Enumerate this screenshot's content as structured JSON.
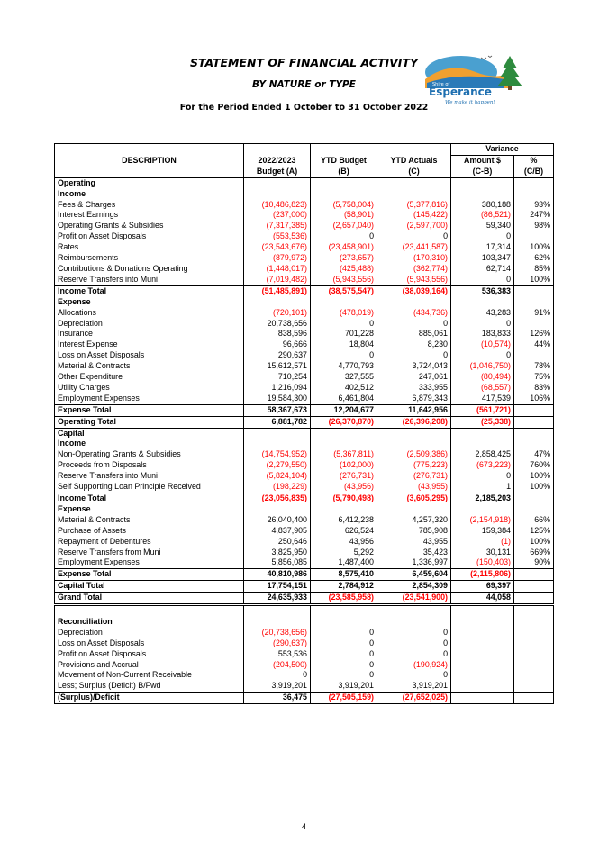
{
  "header": {
    "title": "STATEMENT OF FINANCIAL ACTIVITY",
    "subtitle": "BY NATURE or TYPE",
    "period": "For the Period Ended 1 October to 31 October 2022"
  },
  "logo": {
    "name": "Esperance",
    "shire_text": "Shire of",
    "tagline": "We make it happen!"
  },
  "table": {
    "variance_label": "Variance",
    "columns": {
      "description": "DESCRIPTION",
      "budget": "2022/2023",
      "budget_sub": "Budget (A)",
      "ytd_budget": "YTD Budget",
      "ytd_budget_sub": "(B)",
      "ytd_actuals": "YTD Actuals",
      "ytd_actuals_sub": "(C)",
      "amount": "Amount $",
      "amount_sub": "(C-B)",
      "pct": "%",
      "pct_sub": "(C/B)"
    },
    "rows": [
      {
        "label": "Operating",
        "bold": true,
        "indent": 1,
        "cells": [
          "",
          "",
          "",
          "",
          ""
        ]
      },
      {
        "label": "Income",
        "bold": true,
        "indent": 1,
        "cells": [
          "",
          "",
          "",
          "",
          ""
        ]
      },
      {
        "label": "Fees & Charges",
        "indent": 2,
        "cells": [
          "(10,486,823)",
          "(5,758,004)",
          "(5,377,816)",
          "380,188",
          "93%"
        ]
      },
      {
        "label": "Interest Earnings",
        "indent": 2,
        "cells": [
          "(237,000)",
          "(58,901)",
          "(145,422)",
          "(86,521)",
          "247%"
        ]
      },
      {
        "label": "Operating Grants & Subsidies",
        "indent": 2,
        "cells": [
          "(7,317,385)",
          "(2,657,040)",
          "(2,597,700)",
          "59,340",
          "98%"
        ]
      },
      {
        "label": "Profit on Asset Disposals",
        "indent": 2,
        "cells": [
          "(553,536)",
          "0",
          "0",
          "0",
          ""
        ]
      },
      {
        "label": "Rates",
        "indent": 2,
        "cells": [
          "(23,543,676)",
          "(23,458,901)",
          "(23,441,587)",
          "17,314",
          "100%"
        ]
      },
      {
        "label": "Reimbursements",
        "indent": 2,
        "cells": [
          "(879,972)",
          "(273,657)",
          "(170,310)",
          "103,347",
          "62%"
        ]
      },
      {
        "label": "Contributions & Donations Operating",
        "indent": 2,
        "cells": [
          "(1,448,017)",
          "(425,488)",
          "(362,774)",
          "62,714",
          "85%"
        ]
      },
      {
        "label": "Reserve Transfers into Muni",
        "indent": 2,
        "cells": [
          "(7,019,482)",
          "(5,943,556)",
          "(5,943,556)",
          "0",
          "100%"
        ]
      },
      {
        "label": "Income  Total",
        "bold": true,
        "indent": 1,
        "border": "top",
        "cells": [
          "(51,485,891)",
          "(38,575,547)",
          "(38,039,164)",
          "536,383",
          ""
        ]
      },
      {
        "label": "Expense",
        "bold": true,
        "indent": 1,
        "cells": [
          "",
          "",
          "",
          "",
          ""
        ]
      },
      {
        "label": "Allocations",
        "indent": 2,
        "cells": [
          "(720,101)",
          "(478,019)",
          "(434,736)",
          "43,283",
          "91%"
        ]
      },
      {
        "label": "Depreciation",
        "indent": 2,
        "cells": [
          "20,738,656",
          "0",
          "0",
          "0",
          ""
        ]
      },
      {
        "label": "Insurance",
        "indent": 2,
        "cells": [
          "838,596",
          "701,228",
          "885,061",
          "183,833",
          "126%"
        ]
      },
      {
        "label": "Interest Expense",
        "indent": 2,
        "cells": [
          "96,666",
          "18,804",
          "8,230",
          "(10,574)",
          "44%"
        ]
      },
      {
        "label": "Loss on Asset Disposals",
        "indent": 2,
        "cells": [
          "290,637",
          "0",
          "0",
          "0",
          ""
        ]
      },
      {
        "label": "Material & Contracts",
        "indent": 2,
        "cells": [
          "15,612,571",
          "4,770,793",
          "3,724,043",
          "(1,046,750)",
          "78%"
        ]
      },
      {
        "label": "Other Expenditure",
        "indent": 2,
        "cells": [
          "710,254",
          "327,555",
          "247,061",
          "(80,494)",
          "75%"
        ]
      },
      {
        "label": "Utility Charges",
        "indent": 2,
        "cells": [
          "1,216,094",
          "402,512",
          "333,955",
          "(68,557)",
          "83%"
        ]
      },
      {
        "label": "Employment Expenses",
        "indent": 2,
        "cells": [
          "19,584,300",
          "6,461,804",
          "6,879,343",
          "417,539",
          "106%"
        ]
      },
      {
        "label": "Expense  Total",
        "bold": true,
        "indent": 0,
        "border": "top",
        "cells": [
          "58,367,673",
          "12,204,677",
          "11,642,956",
          "(561,721)",
          ""
        ]
      },
      {
        "label": "Operating  Total",
        "bold": true,
        "indent": 0,
        "border": "top",
        "cells": [
          "6,881,782",
          "(26,370,870)",
          "(26,396,208)",
          "(25,338)",
          ""
        ]
      },
      {
        "label": "Capital",
        "bold": true,
        "indent": 0,
        "border": "top",
        "cells": [
          "",
          "",
          "",
          "",
          ""
        ]
      },
      {
        "label": "Income",
        "bold": true,
        "indent": 1,
        "cells": [
          "",
          "",
          "",
          "",
          ""
        ]
      },
      {
        "label": "Non-Operating Grants & Subsidies",
        "indent": 2,
        "cells": [
          "(14,754,952)",
          "(5,367,811)",
          "(2,509,386)",
          "2,858,425",
          "47%"
        ]
      },
      {
        "label": "Proceeds from Disposals",
        "indent": 2,
        "cells": [
          "(2,279,550)",
          "(102,000)",
          "(775,223)",
          "(673,223)",
          "760%"
        ]
      },
      {
        "label": "Reserve Transfers into Muni",
        "indent": 2,
        "cells": [
          "(5,824,104)",
          "(276,731)",
          "(276,731)",
          "0",
          "100%"
        ]
      },
      {
        "label": "Self Supporting Loan Principle Received",
        "indent": 2,
        "cells": [
          "(198,229)",
          "(43,956)",
          "(43,955)",
          "1",
          "100%"
        ]
      },
      {
        "label": "Income  Total",
        "bold": true,
        "indent": 0,
        "border": "top",
        "cells": [
          "(23,056,835)",
          "(5,790,498)",
          "(3,605,295)",
          "2,185,203",
          ""
        ]
      },
      {
        "label": "Expense",
        "bold": true,
        "indent": 1,
        "cells": [
          "",
          "",
          "",
          "",
          ""
        ]
      },
      {
        "label": "Material & Contracts",
        "indent": 2,
        "cells": [
          "26,040,400",
          "6,412,238",
          "4,257,320",
          "(2,154,918)",
          "66%"
        ]
      },
      {
        "label": "Purchase of Assets",
        "indent": 2,
        "cells": [
          "4,837,905",
          "626,524",
          "785,908",
          "159,384",
          "125%"
        ]
      },
      {
        "label": "Repayment of Debentures",
        "indent": 2,
        "cells": [
          "250,646",
          "43,956",
          "43,955",
          "(1)",
          "100%"
        ]
      },
      {
        "label": "Reserve Transfers from Muni",
        "indent": 2,
        "cells": [
          "3,825,950",
          "5,292",
          "35,423",
          "30,131",
          "669%"
        ]
      },
      {
        "label": "Employment Expenses",
        "indent": 2,
        "cells": [
          "5,856,085",
          "1,487,400",
          "1,336,997",
          "(150,403)",
          "90%"
        ]
      },
      {
        "label": "Expense  Total",
        "bold": true,
        "indent": 0,
        "border": "top",
        "cells": [
          "40,810,986",
          "8,575,410",
          "6,459,604",
          "(2,115,806)",
          ""
        ]
      },
      {
        "label": "Capital Total",
        "bold": true,
        "indent": 0,
        "border": "top",
        "cells": [
          "17,754,151",
          "2,784,912",
          "2,854,309",
          "69,397",
          ""
        ]
      },
      {
        "label": "Grand Total",
        "bold": true,
        "indent": 0,
        "border": "top",
        "double": true,
        "cells": [
          "24,635,933",
          "(23,585,958)",
          "(23,541,900)",
          "44,058",
          ""
        ]
      },
      {
        "label": "",
        "indent": 0,
        "cells": [
          "",
          "",
          "",
          "",
          ""
        ]
      },
      {
        "label": "Reconciliation",
        "bold": true,
        "indent": 0,
        "cells": [
          "",
          "",
          "",
          "",
          ""
        ]
      },
      {
        "label": "Depreciation",
        "indent": 0,
        "cells": [
          "(20,738,656)",
          "0",
          "0",
          "",
          ""
        ]
      },
      {
        "label": "Loss on Asset Disposals",
        "indent": 0,
        "cells": [
          "(290,637)",
          "0",
          "0",
          "",
          ""
        ]
      },
      {
        "label": "Profit on Asset Disposals",
        "indent": 0,
        "cells": [
          "553,536",
          "0",
          "0",
          "",
          ""
        ]
      },
      {
        "label": "Provisions and Accrual",
        "indent": 0,
        "cells": [
          "(204,500)",
          "0",
          "(190,924)",
          "",
          ""
        ]
      },
      {
        "label": "Movement of Non-Current Receivable",
        "indent": 0,
        "cells": [
          "0",
          "0",
          "0",
          "",
          ""
        ]
      },
      {
        "label": "Less; Surplus (Deficit) B/Fwd",
        "indent": 0,
        "cells": [
          "3,919,201",
          "3,919,201",
          "3,919,201",
          "",
          ""
        ]
      },
      {
        "label": "(Surplus)/Deficit",
        "bold": true,
        "indent": 0,
        "border": "top",
        "last": true,
        "cells": [
          "36,475",
          "(27,505,159)",
          "(27,652,025)",
          "",
          ""
        ]
      }
    ]
  },
  "footer": {
    "page_number": "4"
  }
}
